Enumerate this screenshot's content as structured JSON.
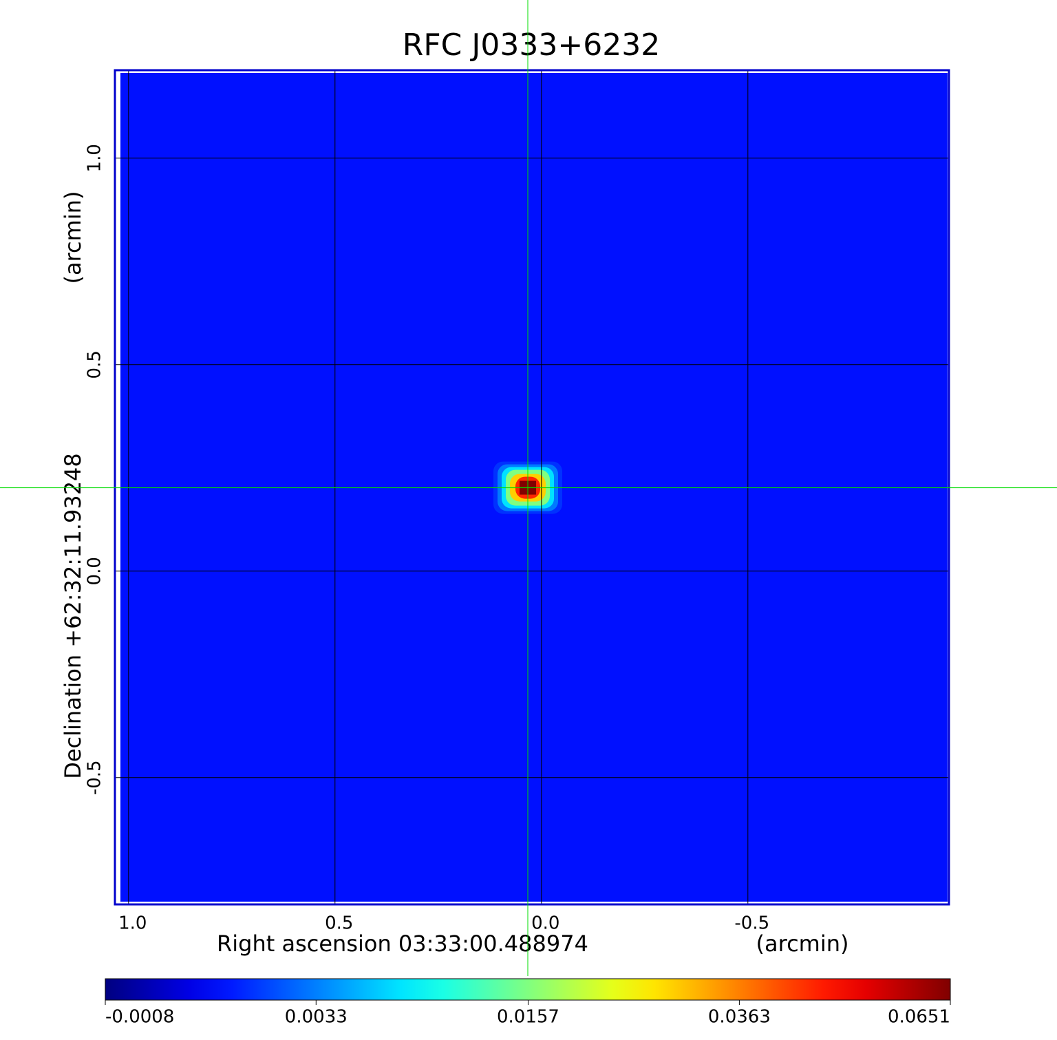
{
  "chart_data": {
    "type": "image",
    "title": "RFC J0333+6232",
    "xlabel": "Right ascension  03:33:00.488974",
    "xunit": "(arcmin)",
    "ylabel": "Declination  +62:32:11.93248",
    "yunit": "(arcmin)",
    "xlim": [
      1.033,
      -0.987
    ],
    "ylim": [
      -0.807,
      1.213
    ],
    "xticks": [
      {
        "value": 1,
        "label": "1.0"
      },
      0.5,
      {
        "value": 0,
        "label": "0.0"
      },
      -0.5
    ],
    "yticks": [
      -0.5,
      {
        "value": 0,
        "label": "0.0"
      },
      0.5,
      {
        "value": 1,
        "label": "1.0"
      }
    ],
    "grid": true,
    "colormap": "jet",
    "color_scale": "sqrt",
    "clim": [
      -0.0008,
      0.0651
    ],
    "cticks": [
      -0.0008,
      0.0033,
      0.0157,
      0.0363,
      0.0651
    ],
    "background": 0.0005,
    "source": {
      "x": 0.033,
      "y": 0.202,
      "peak": 0.0651
    },
    "crosshair": {
      "x": 0.033,
      "y": 0.202,
      "color": "#00dd00"
    },
    "frame_color": "#0000cc",
    "title_color": "#0000cc"
  }
}
